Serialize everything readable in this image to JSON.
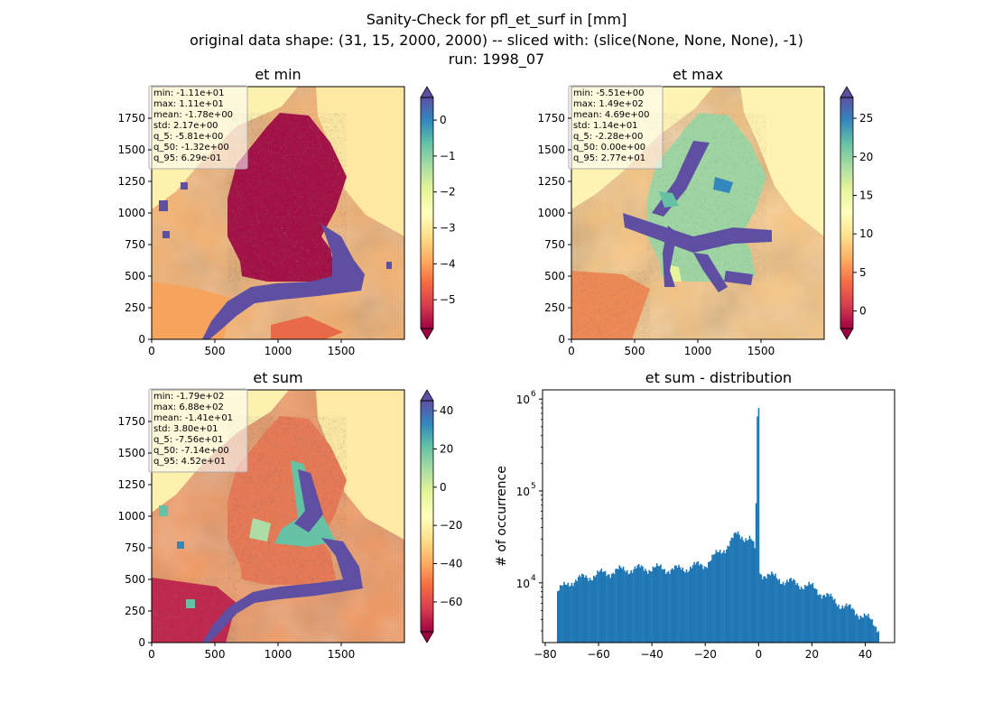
{
  "figure": {
    "title_lines": [
      "Sanity-Check for pfl_et_surf in [mm]",
      "original data shape: (31, 15, 2000, 2000) -- sliced with: (slice(None, None, None), -1)",
      "run: 1998_07"
    ]
  },
  "colors": {
    "hist_bar": "#1f77b4",
    "spectral": [
      "#9e0142",
      "#d53e4f",
      "#f46d43",
      "#fdae61",
      "#fee08b",
      "#ffffbf",
      "#e6f598",
      "#abdda4",
      "#66c2a5",
      "#3288bd",
      "#5e4fa2"
    ]
  },
  "chart_data": [
    {
      "type": "heatmap",
      "title": "et min",
      "xticks": [
        "0",
        "500",
        "1000",
        "1500"
      ],
      "yticks": [
        "0",
        "250",
        "500",
        "750",
        "1000",
        "1250",
        "1500",
        "1750"
      ],
      "xlim": [
        0,
        2000
      ],
      "ylim": [
        0,
        2000
      ],
      "colorbar": {
        "ticks": [
          "0",
          "−1",
          "−2",
          "−3",
          "−4",
          "−5"
        ],
        "tick_values": [
          0,
          -1,
          -2,
          -3,
          -4,
          -5
        ],
        "vmin": -5.8,
        "vmax": 0.63,
        "extend": "both"
      },
      "stats": [
        "min: -1.11e+01",
        "max: 1.11e+01",
        "mean: -1.78e+00",
        "std: 2.17e+00",
        "q_5: -5.81e+00",
        "q_50: -1.32e+00",
        "q_95: 6.29e-01"
      ]
    },
    {
      "type": "heatmap",
      "title": "et max",
      "xticks": [
        "0",
        "500",
        "1000",
        "1500"
      ],
      "yticks": [
        "0",
        "250",
        "500",
        "750",
        "1000",
        "1250",
        "1500",
        "1750"
      ],
      "xlim": [
        0,
        2000
      ],
      "ylim": [
        0,
        2000
      ],
      "colorbar": {
        "ticks": [
          "25",
          "20",
          "15",
          "10",
          "5",
          "0"
        ],
        "tick_values": [
          25,
          20,
          15,
          10,
          5,
          0
        ],
        "vmin": -2.28,
        "vmax": 27.7,
        "extend": "both"
      },
      "stats": [
        "min: -5.51e+00",
        "max: 1.49e+02",
        "mean: 4.69e+00",
        "std: 1.14e+01",
        "q_5: -2.28e+00",
        "q_50: 0.00e+00",
        "q_95: 2.77e+01"
      ]
    },
    {
      "type": "heatmap",
      "title": "et sum",
      "xticks": [
        "0",
        "500",
        "1000",
        "1500"
      ],
      "yticks": [
        "0",
        "250",
        "500",
        "750",
        "1000",
        "1250",
        "1500",
        "1750"
      ],
      "xlim": [
        0,
        2000
      ],
      "ylim": [
        0,
        2000
      ],
      "colorbar": {
        "ticks": [
          "40",
          "20",
          "0",
          "−20",
          "−40",
          "−60"
        ],
        "tick_values": [
          40,
          20,
          0,
          -20,
          -40,
          -60
        ],
        "vmin": -75.6,
        "vmax": 45.2,
        "extend": "both"
      },
      "stats": [
        "min: -1.79e+02",
        "max: 6.88e+02",
        "mean: -1.41e+01",
        "std: 3.80e+01",
        "q_5: -7.56e+01",
        "q_50: -7.14e+00",
        "q_95: 4.52e+01"
      ]
    },
    {
      "type": "bar",
      "title": "et sum - distribution",
      "ylabel": "# of occurrence",
      "xlim": [
        -81,
        51
      ],
      "yscale": "log",
      "ylim_log10": [
        3.35,
        6.1
      ],
      "xticks": [
        "−80",
        "−60",
        "−40",
        "−20",
        "0",
        "20",
        "40"
      ],
      "xtick_values": [
        -80,
        -60,
        -40,
        -20,
        0,
        20,
        40
      ],
      "yticks": [
        "10",
        "10",
        "10"
      ],
      "ytick_exponents": [
        "4",
        "5",
        "6"
      ],
      "ytick_values": [
        10000,
        100000,
        1000000
      ],
      "bin_range": [
        -75.6,
        45.2
      ],
      "profile_points": [
        {
          "x": -75.6,
          "y": 8000
        },
        {
          "x": -70,
          "y": 10500
        },
        {
          "x": -60,
          "y": 12500
        },
        {
          "x": -50,
          "y": 14000
        },
        {
          "x": -40,
          "y": 14500
        },
        {
          "x": -30,
          "y": 14000
        },
        {
          "x": -20,
          "y": 16000
        },
        {
          "x": -12,
          "y": 25000
        },
        {
          "x": -8,
          "y": 34000
        },
        {
          "x": -3,
          "y": 30000
        },
        {
          "x": -1.2,
          "y": 22000
        },
        {
          "x": -0.4,
          "y": 800000
        },
        {
          "x": 0.4,
          "y": 13000
        },
        {
          "x": 10,
          "y": 10500
        },
        {
          "x": 20,
          "y": 9000
        },
        {
          "x": 30,
          "y": 6000
        },
        {
          "x": 40,
          "y": 4300
        },
        {
          "x": 45.2,
          "y": 3200
        }
      ]
    }
  ]
}
